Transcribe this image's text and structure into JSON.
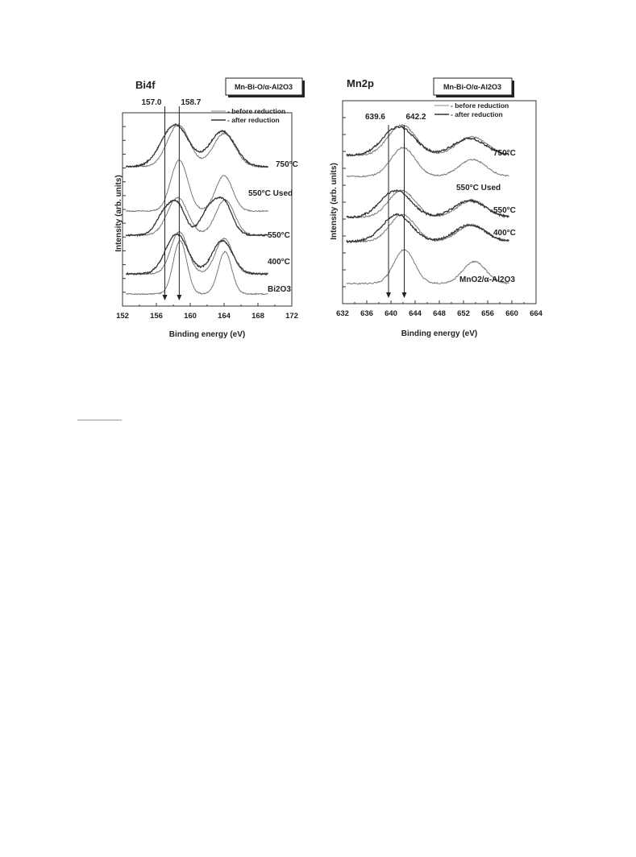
{
  "chart_data": [
    {
      "type": "line",
      "title": "Bi4f",
      "badge": "Mn-Bi-O/α-Al2O3",
      "xlabel": "Binding energy (eV)",
      "ylabel": "Intensity (arb. units)",
      "xlim": [
        152,
        172
      ],
      "x_ticks": [
        "152",
        "156",
        "160",
        "164",
        "168",
        "172"
      ],
      "legend": {
        "before": "- before reduction",
        "after": "- after reduction",
        "placement": "top-right"
      },
      "reference_lines": [
        {
          "label": "157.0",
          "x": 157.0
        },
        {
          "label": "158.7",
          "x": 158.7
        }
      ],
      "series": [
        {
          "name": "750°C",
          "before": {
            "peaks": [
              [
                158.6,
                0.95,
                1.3
              ],
              [
                164.0,
                0.75,
                1.3
              ]
            ]
          },
          "after": {
            "peaks": [
              [
                158.2,
                0.95,
                1.6
              ],
              [
                163.8,
                0.8,
                1.5
              ]
            ]
          }
        },
        {
          "name": "550°C Used",
          "before": {
            "peaks": [
              [
                158.7,
                1.15,
                1.0
              ],
              [
                164.0,
                0.8,
                1.0
              ]
            ]
          }
        },
        {
          "name": "550°C",
          "before": {
            "peaks": [
              [
                158.5,
                0.85,
                1.2
              ],
              [
                164.1,
                0.8,
                1.1
              ]
            ]
          },
          "after": {
            "peaks": [
              [
                157.0,
                0.5,
                1.0
              ],
              [
                158.6,
                0.6,
                0.9
              ],
              [
                162.2,
                0.55,
                1.0
              ],
              [
                164.0,
                0.7,
                1.0
              ]
            ]
          }
        },
        {
          "name": "400°C",
          "before": {
            "peaks": [
              [
                158.7,
                0.95,
                1.0
              ],
              [
                164.0,
                0.8,
                1.0
              ]
            ]
          },
          "after": {
            "peaks": [
              [
                158.4,
                0.9,
                1.3
              ],
              [
                163.8,
                0.75,
                1.2
              ]
            ]
          }
        },
        {
          "name": "Bi2O3",
          "before": {
            "peaks": [
              [
                158.8,
                1.2,
                0.8
              ],
              [
                164.1,
                0.95,
                0.8
              ]
            ]
          }
        }
      ]
    },
    {
      "type": "line",
      "title": "Mn2p",
      "badge": "Mn-Bi-O/α-Al2O3",
      "xlabel": "Binding energy (eV)",
      "ylabel": "Intensity (arb. units)",
      "xlim": [
        632,
        664
      ],
      "x_ticks": [
        "632",
        "636",
        "640",
        "644",
        "648",
        "652",
        "656",
        "660",
        "664"
      ],
      "legend": {
        "before": "- before reduction",
        "after": "- after reduction",
        "placement": "top-right"
      },
      "reference_lines": [
        {
          "label": "639.6",
          "x": 639.6
        },
        {
          "label": "642.2",
          "x": 642.2
        }
      ],
      "series": [
        {
          "name": "750°C",
          "before": {
            "peaks": [
              [
                641.8,
                0.9,
                2.3
              ],
              [
                653.4,
                0.55,
                2.5
              ]
            ]
          },
          "after": {
            "peaks": [
              [
                641.3,
                0.85,
                2.6
              ],
              [
                653.0,
                0.5,
                2.7
              ]
            ]
          }
        },
        {
          "name": "550°C Used",
          "before": {
            "peaks": [
              [
                642.0,
                0.85,
                2.0
              ],
              [
                653.5,
                0.5,
                2.2
              ]
            ]
          }
        },
        {
          "name": "550°C",
          "before": {
            "peaks": [
              [
                641.8,
                0.8,
                2.2
              ],
              [
                653.4,
                0.5,
                2.4
              ]
            ]
          },
          "after": {
            "peaks": [
              [
                640.8,
                0.8,
                2.5
              ],
              [
                653.0,
                0.5,
                2.6
              ]
            ]
          }
        },
        {
          "name": "400°C",
          "before": {
            "peaks": [
              [
                641.9,
                0.8,
                2.1
              ],
              [
                653.4,
                0.5,
                2.3
              ]
            ]
          },
          "after": {
            "peaks": [
              [
                641.0,
                0.8,
                2.4
              ],
              [
                653.1,
                0.5,
                2.5
              ]
            ]
          }
        },
        {
          "name": "MnO2/α-Al2O3",
          "before": {
            "peaks": [
              [
                642.2,
                1.0,
                1.7
              ],
              [
                653.8,
                0.65,
                1.9
              ]
            ]
          }
        }
      ]
    }
  ]
}
